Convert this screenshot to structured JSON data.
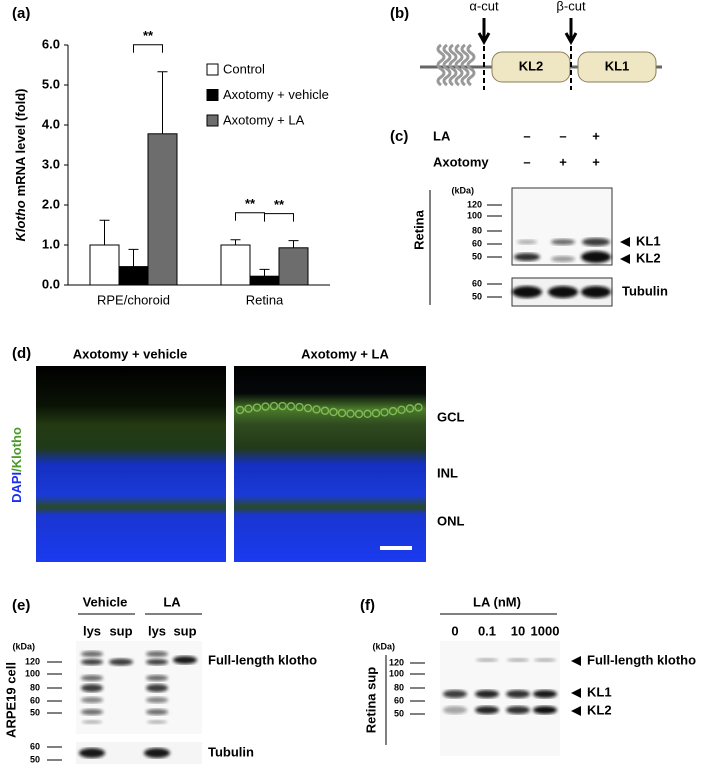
{
  "chart_data": {
    "type": "bar",
    "panel_label": "(a)",
    "ylabel": [
      "Klotho",
      "mRNA level (fold)"
    ],
    "categories": [
      "RPE/choroid",
      "Retina"
    ],
    "series": [
      {
        "name": "Control",
        "color": "#ffffff",
        "values": [
          1.0,
          1.0
        ],
        "errors": [
          0.62,
          0.13
        ]
      },
      {
        "name": "Axotomy + vehicle",
        "color": "#000000",
        "values": [
          0.46,
          0.22
        ],
        "errors": [
          0.43,
          0.17
        ]
      },
      {
        "name": "Axotomy + LA",
        "color": "#6d6d6d",
        "values": [
          3.78,
          0.93
        ],
        "errors": [
          1.55,
          0.18
        ]
      }
    ],
    "ylim": [
      0,
      6
    ],
    "yticks": [
      {
        "value": 0,
        "label": "0.0"
      },
      {
        "value": 1,
        "label": "1.0"
      },
      {
        "value": 2,
        "label": "2.0"
      },
      {
        "value": 3,
        "label": "3.0"
      },
      {
        "value": 4,
        "label": "4.0"
      },
      {
        "value": 5,
        "label": "5.0"
      },
      {
        "value": 6,
        "label": "6.0"
      }
    ],
    "significance": [
      {
        "label": "**",
        "category": 0,
        "series": [
          1,
          2
        ]
      },
      {
        "label": "**",
        "category": 1,
        "series": [
          0,
          1
        ]
      },
      {
        "label": "**",
        "category": 1,
        "series": [
          1,
          2
        ]
      }
    ]
  },
  "panel_b": {
    "label": "(b)",
    "cuts": [
      "α-cut",
      "β-cut"
    ],
    "domains": [
      "KL2",
      "KL1"
    ]
  },
  "panel_c": {
    "label": "(c)",
    "rows": [
      {
        "label": "LA",
        "signs": [
          "–",
          "–",
          "+"
        ]
      },
      {
        "label": "Axotomy",
        "signs": [
          "–",
          "+",
          "+"
        ]
      }
    ],
    "unit": "(kDa)",
    "markers": [
      120,
      100,
      80,
      60,
      50
    ],
    "loading_markers": [
      60,
      50
    ],
    "tissue": "Retina",
    "bands": [
      "KL1",
      "KL2"
    ],
    "loading": "Tubulin"
  },
  "panel_d": {
    "label": "(d)",
    "titles": [
      "Axotomy + vehicle",
      "Axotomy + LA"
    ],
    "stain": [
      "DAPI",
      "/Klotho"
    ],
    "layers": [
      "GCL",
      "INL",
      "ONL"
    ]
  },
  "panel_e": {
    "label": "(e)",
    "groups": [
      "Vehicle",
      "LA"
    ],
    "lanes": [
      "lys",
      "sup",
      "lys",
      "sup"
    ],
    "unit": "(kDa)",
    "markers": [
      120,
      100,
      80,
      60,
      50
    ],
    "loading_markers": [
      60,
      50
    ],
    "sample": "ARPE19 cell",
    "band": "Full-length klotho",
    "loading": "Tubulin"
  },
  "panel_f": {
    "label": "(f)",
    "treatment": "LA (nM)",
    "lanes": [
      "0",
      "0.1",
      "10",
      "1000"
    ],
    "unit": "(kDa)",
    "markers": [
      120,
      100,
      80,
      60,
      50
    ],
    "sample": "Retina sup",
    "bands": [
      "Full-length klotho",
      "KL1",
      "KL2"
    ]
  }
}
